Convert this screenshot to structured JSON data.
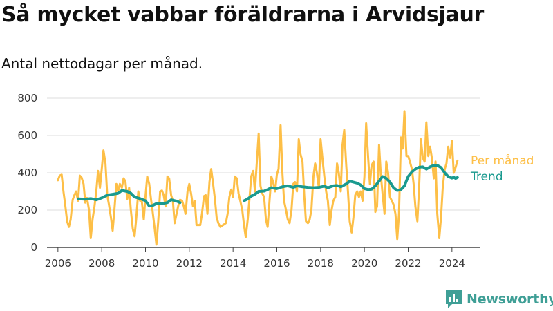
{
  "chart_data": {
    "type": "line",
    "title": "Så mycket vabbar föräldrarna i Arvidsjaur",
    "subtitle": "Antal nettodagar per månad.",
    "xlabel": "",
    "ylabel": "",
    "x_ticks": [
      "2006",
      "2008",
      "2010",
      "2012",
      "2014",
      "2016",
      "2018",
      "2020",
      "2022",
      "2024"
    ],
    "y_ticks": [
      0,
      200,
      400,
      600,
      800
    ],
    "ylim": [
      0,
      800
    ],
    "xlim": [
      2005.5,
      2025.3
    ],
    "grid": "horizontal",
    "legend_placement": "right end of lines",
    "series": [
      {
        "name": "Per månad",
        "color": "#fdbf47",
        "points": [
          [
            2006.0,
            360
          ],
          [
            2006.08,
            385
          ],
          [
            2006.17,
            390
          ],
          [
            2006.25,
            300
          ],
          [
            2006.33,
            230
          ],
          [
            2006.42,
            140
          ],
          [
            2006.5,
            110
          ],
          [
            2006.58,
            150
          ],
          [
            2006.67,
            255
          ],
          [
            2006.75,
            280
          ],
          [
            2006.83,
            300
          ],
          [
            2006.92,
            250
          ],
          [
            2007.0,
            385
          ],
          [
            2007.08,
            375
          ],
          [
            2007.17,
            340
          ],
          [
            2007.25,
            240
          ],
          [
            2007.33,
            265
          ],
          [
            2007.42,
            200
          ],
          [
            2007.5,
            50
          ],
          [
            2007.58,
            150
          ],
          [
            2007.67,
            220
          ],
          [
            2007.75,
            300
          ],
          [
            2007.83,
            410
          ],
          [
            2007.92,
            320
          ],
          [
            2008.0,
            420
          ],
          [
            2008.08,
            520
          ],
          [
            2008.17,
            450
          ],
          [
            2008.25,
            280
          ],
          [
            2008.33,
            230
          ],
          [
            2008.42,
            160
          ],
          [
            2008.5,
            90
          ],
          [
            2008.58,
            200
          ],
          [
            2008.67,
            340
          ],
          [
            2008.75,
            300
          ],
          [
            2008.83,
            340
          ],
          [
            2008.92,
            320
          ],
          [
            2009.0,
            370
          ],
          [
            2009.08,
            355
          ],
          [
            2009.17,
            260
          ],
          [
            2009.25,
            320
          ],
          [
            2009.33,
            200
          ],
          [
            2009.42,
            100
          ],
          [
            2009.5,
            60
          ],
          [
            2009.58,
            160
          ],
          [
            2009.67,
            300
          ],
          [
            2009.75,
            250
          ],
          [
            2009.83,
            250
          ],
          [
            2009.92,
            150
          ],
          [
            2010.0,
            275
          ],
          [
            2010.08,
            380
          ],
          [
            2010.17,
            340
          ],
          [
            2010.25,
            260
          ],
          [
            2010.33,
            190
          ],
          [
            2010.42,
            100
          ],
          [
            2010.5,
            15
          ],
          [
            2010.58,
            140
          ],
          [
            2010.67,
            300
          ],
          [
            2010.75,
            305
          ],
          [
            2010.83,
            280
          ],
          [
            2010.92,
            220
          ],
          [
            2011.0,
            380
          ],
          [
            2011.08,
            370
          ],
          [
            2011.17,
            280
          ],
          [
            2011.25,
            250
          ],
          [
            2011.33,
            130
          ],
          [
            2011.5,
            225
          ],
          [
            2011.58,
            255
          ],
          [
            2011.67,
            250
          ],
          [
            2011.75,
            220
          ],
          [
            2011.83,
            180
          ],
          [
            2011.92,
            300
          ],
          [
            2012.0,
            340
          ],
          [
            2012.08,
            290
          ],
          [
            2012.17,
            220
          ],
          [
            2012.25,
            250
          ],
          [
            2012.33,
            120
          ],
          [
            2012.5,
            120
          ],
          [
            2012.58,
            180
          ],
          [
            2012.67,
            275
          ],
          [
            2012.75,
            280
          ],
          [
            2012.83,
            180
          ],
          [
            2012.92,
            350
          ],
          [
            2013.0,
            420
          ],
          [
            2013.08,
            350
          ],
          [
            2013.17,
            260
          ],
          [
            2013.25,
            160
          ],
          [
            2013.33,
            130
          ],
          [
            2013.42,
            110
          ],
          [
            2013.67,
            130
          ],
          [
            2013.75,
            180
          ],
          [
            2013.83,
            270
          ],
          [
            2013.92,
            310
          ],
          [
            2014.0,
            270
          ],
          [
            2014.08,
            380
          ],
          [
            2014.17,
            370
          ],
          [
            2014.25,
            290
          ],
          [
            2014.33,
            250
          ],
          [
            2014.42,
            200
          ],
          [
            2014.5,
            120
          ],
          [
            2014.58,
            55
          ],
          [
            2014.67,
            150
          ],
          [
            2014.75,
            260
          ],
          [
            2014.83,
            380
          ],
          [
            2014.92,
            410
          ],
          [
            2015.0,
            300
          ],
          [
            2015.08,
            450
          ],
          [
            2015.17,
            610
          ],
          [
            2015.25,
            330
          ],
          [
            2015.33,
            290
          ],
          [
            2015.42,
            270
          ],
          [
            2015.5,
            150
          ],
          [
            2015.58,
            110
          ],
          [
            2015.67,
            260
          ],
          [
            2015.75,
            380
          ],
          [
            2015.83,
            350
          ],
          [
            2015.92,
            300
          ],
          [
            2016.0,
            390
          ],
          [
            2016.08,
            420
          ],
          [
            2016.17,
            655
          ],
          [
            2016.25,
            410
          ],
          [
            2016.33,
            250
          ],
          [
            2016.42,
            200
          ],
          [
            2016.5,
            150
          ],
          [
            2016.58,
            130
          ],
          [
            2016.67,
            200
          ],
          [
            2016.75,
            340
          ],
          [
            2016.83,
            350
          ],
          [
            2016.92,
            300
          ],
          [
            2017.0,
            580
          ],
          [
            2017.08,
            500
          ],
          [
            2017.17,
            460
          ],
          [
            2017.25,
            280
          ],
          [
            2017.33,
            140
          ],
          [
            2017.42,
            130
          ],
          [
            2017.5,
            150
          ],
          [
            2017.58,
            200
          ],
          [
            2017.67,
            380
          ],
          [
            2017.75,
            450
          ],
          [
            2017.83,
            400
          ],
          [
            2017.92,
            320
          ],
          [
            2018.0,
            580
          ],
          [
            2018.08,
            480
          ],
          [
            2018.17,
            380
          ],
          [
            2018.25,
            300
          ],
          [
            2018.33,
            250
          ],
          [
            2018.42,
            120
          ],
          [
            2018.5,
            200
          ],
          [
            2018.58,
            250
          ],
          [
            2018.67,
            270
          ],
          [
            2018.75,
            450
          ],
          [
            2018.83,
            400
          ],
          [
            2018.92,
            300
          ],
          [
            2019.0,
            550
          ],
          [
            2019.08,
            630
          ],
          [
            2019.17,
            440
          ],
          [
            2019.25,
            300
          ],
          [
            2019.33,
            140
          ],
          [
            2019.42,
            80
          ],
          [
            2019.5,
            160
          ],
          [
            2019.58,
            280
          ],
          [
            2019.67,
            300
          ],
          [
            2019.75,
            270
          ],
          [
            2019.83,
            300
          ],
          [
            2019.92,
            250
          ],
          [
            2020.0,
            380
          ],
          [
            2020.08,
            665
          ],
          [
            2020.17,
            480
          ],
          [
            2020.25,
            340
          ],
          [
            2020.33,
            440
          ],
          [
            2020.42,
            460
          ],
          [
            2020.5,
            190
          ],
          [
            2020.58,
            220
          ],
          [
            2020.67,
            550
          ],
          [
            2020.75,
            390
          ],
          [
            2020.83,
            290
          ],
          [
            2020.92,
            180
          ],
          [
            2021.0,
            460
          ],
          [
            2021.08,
            400
          ],
          [
            2021.17,
            270
          ],
          [
            2021.25,
            250
          ],
          [
            2021.33,
            230
          ],
          [
            2021.42,
            180
          ],
          [
            2021.5,
            45
          ],
          [
            2021.58,
            180
          ],
          [
            2021.67,
            590
          ],
          [
            2021.75,
            530
          ],
          [
            2021.83,
            730
          ],
          [
            2021.92,
            490
          ],
          [
            2022.0,
            490
          ],
          [
            2022.08,
            460
          ],
          [
            2022.17,
            420
          ],
          [
            2022.25,
            340
          ],
          [
            2022.33,
            220
          ],
          [
            2022.42,
            140
          ],
          [
            2022.5,
            320
          ],
          [
            2022.58,
            580
          ],
          [
            2022.67,
            480
          ],
          [
            2022.75,
            460
          ],
          [
            2022.83,
            670
          ],
          [
            2022.92,
            490
          ],
          [
            2023.0,
            540
          ],
          [
            2023.08,
            480
          ],
          [
            2023.17,
            370
          ],
          [
            2023.25,
            460
          ],
          [
            2023.33,
            180
          ],
          [
            2023.42,
            50
          ],
          [
            2023.5,
            160
          ],
          [
            2023.58,
            320
          ],
          [
            2023.67,
            420
          ],
          [
            2023.75,
            450
          ],
          [
            2023.83,
            540
          ],
          [
            2023.92,
            480
          ],
          [
            2024.0,
            570
          ],
          [
            2024.08,
            400
          ],
          [
            2024.17,
            430
          ],
          [
            2024.25,
            465
          ]
        ]
      },
      {
        "name": "Trend",
        "color": "#1a9a8f",
        "points": [
          [
            2006.92,
            260
          ],
          [
            2007.25,
            258
          ],
          [
            2007.5,
            262
          ],
          [
            2007.75,
            255
          ],
          [
            2008.0,
            265
          ],
          [
            2008.25,
            280
          ],
          [
            2008.5,
            285
          ],
          [
            2008.75,
            290
          ],
          [
            2008.92,
            305
          ],
          [
            2009.17,
            300
          ],
          [
            2009.33,
            290
          ],
          [
            2009.5,
            270
          ],
          [
            2009.75,
            262
          ],
          [
            2010.0,
            250
          ],
          [
            2010.17,
            222
          ],
          [
            2010.33,
            225
          ],
          [
            2010.5,
            235
          ],
          [
            2010.75,
            235
          ],
          [
            2011.0,
            240
          ],
          [
            2011.17,
            255
          ],
          [
            2011.42,
            248
          ],
          [
            2011.58,
            240
          ],
          [
            2014.5,
            250
          ],
          [
            2014.67,
            260
          ],
          [
            2014.83,
            275
          ],
          [
            2015.0,
            285
          ],
          [
            2015.17,
            300
          ],
          [
            2015.42,
            302
          ],
          [
            2015.58,
            310
          ],
          [
            2015.75,
            320
          ],
          [
            2016.0,
            315
          ],
          [
            2016.25,
            325
          ],
          [
            2016.5,
            330
          ],
          [
            2016.75,
            322
          ],
          [
            2016.92,
            330
          ],
          [
            2017.17,
            325
          ],
          [
            2017.42,
            322
          ],
          [
            2017.67,
            320
          ],
          [
            2017.92,
            322
          ],
          [
            2018.17,
            328
          ],
          [
            2018.33,
            320
          ],
          [
            2018.58,
            330
          ],
          [
            2018.75,
            332
          ],
          [
            2018.92,
            325
          ],
          [
            2019.17,
            340
          ],
          [
            2019.33,
            355
          ],
          [
            2019.5,
            350
          ],
          [
            2019.67,
            345
          ],
          [
            2019.83,
            335
          ],
          [
            2020.0,
            315
          ],
          [
            2020.17,
            310
          ],
          [
            2020.33,
            312
          ],
          [
            2020.5,
            330
          ],
          [
            2020.67,
            355
          ],
          [
            2020.83,
            380
          ],
          [
            2021.0,
            370
          ],
          [
            2021.17,
            350
          ],
          [
            2021.33,
            320
          ],
          [
            2021.5,
            305
          ],
          [
            2021.67,
            310
          ],
          [
            2021.83,
            330
          ],
          [
            2022.0,
            380
          ],
          [
            2022.17,
            405
          ],
          [
            2022.33,
            420
          ],
          [
            2022.5,
            430
          ],
          [
            2022.67,
            432
          ],
          [
            2022.83,
            420
          ],
          [
            2023.0,
            432
          ],
          [
            2023.17,
            440
          ],
          [
            2023.33,
            440
          ],
          [
            2023.5,
            428
          ],
          [
            2023.67,
            400
          ],
          [
            2023.83,
            380
          ],
          [
            2024.0,
            372
          ],
          [
            2024.08,
            376
          ],
          [
            2024.17,
            370
          ],
          [
            2024.25,
            375
          ]
        ]
      }
    ]
  },
  "brand": {
    "name": "Newsworthy",
    "icon": "newsworthy-logo-icon",
    "color": "#3f9f96"
  }
}
